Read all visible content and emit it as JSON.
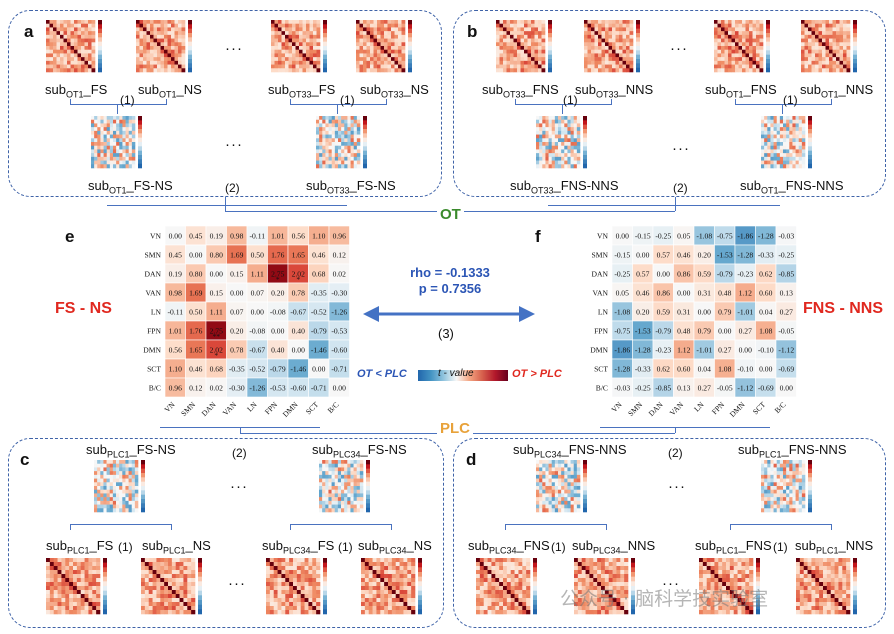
{
  "panels": {
    "a": {
      "letter": "a",
      "left_l1": "sub",
      "left_s1": "OT1",
      "left_t1": "_FS",
      "left_l2": "sub",
      "left_s2": "OT1",
      "left_t2": "_NS",
      "right_l1": "sub",
      "right_s1": "OT33",
      "right_t1": "_FS",
      "right_l2": "sub",
      "right_s2": "OT33",
      "right_t2": "_NS",
      "step1a": "(1)",
      "step1b": "(1)",
      "bot_left_pre": "sub",
      "bot_left_sub": "OT1",
      "bot_left_t": "_FS-NS",
      "bot_right_pre": "sub",
      "bot_right_sub": "OT33",
      "bot_right_t": "_FS-NS",
      "step2": "(2)",
      "dots": "···"
    },
    "b": {
      "letter": "b",
      "left_l1": "sub",
      "left_s1": "OT33",
      "left_t1": "_FNS",
      "left_l2": "sub",
      "left_s2": "OT33",
      "left_t2": "_NNS",
      "right_l1": "sub",
      "right_s1": "OT1",
      "right_t1": "_FNS",
      "right_l2": "sub",
      "right_s2": "OT1",
      "right_t2": "_NNS",
      "step1a": "(1)",
      "step1b": "(1)",
      "bot_left_pre": "sub",
      "bot_left_sub": "OT33",
      "bot_left_t": "_FNS-NNS",
      "bot_right_pre": "sub",
      "bot_right_sub": "OT1",
      "bot_right_t": "_FNS-NNS",
      "step2": "(2)",
      "dots": "···"
    },
    "c": {
      "letter": "c",
      "top_left_pre": "sub",
      "top_left_sub": "PLC1",
      "top_left_t": "_FS-NS",
      "top_right_pre": "sub",
      "top_right_sub": "PLC34",
      "top_right_t": "_FS-NS",
      "step2": "(2)",
      "bl1_pre": "sub",
      "bl1_sub": "PLC1",
      "bl1_t": "_FS",
      "bl2_pre": "sub",
      "bl2_sub": "PLC1",
      "bl2_t": "_NS",
      "br1_pre": "sub",
      "br1_sub": "PLC34",
      "br1_t": "_FS",
      "br2_pre": "sub",
      "br2_sub": "PLC34",
      "br2_t": "_NS",
      "step1a": "(1)",
      "step1b": "(1)",
      "dots": "···"
    },
    "d": {
      "letter": "d",
      "top_left_pre": "sub",
      "top_left_sub": "PLC34",
      "top_left_t": "_FNS-NNS",
      "top_right_pre": "sub",
      "top_right_sub": "PLC1",
      "top_right_t": "_FNS-NNS",
      "step2": "(2)",
      "bl1_pre": "sub",
      "bl1_sub": "PLC34",
      "bl1_t": "_FNS",
      "bl2_pre": "sub",
      "bl2_sub": "PLC34",
      "bl2_t": "_NNS",
      "br1_pre": "sub",
      "br1_sub": "PLC1",
      "br1_t": "_FNS",
      "br2_pre": "sub",
      "br2_sub": "PLC1",
      "br2_t": "_NNS",
      "step1a": "(1)",
      "step1b": "(1)",
      "dots": "···"
    }
  },
  "middle": {
    "ot_label": "OT",
    "plc_label": "PLC",
    "fs_ns": "FS - NS",
    "fns_nns": "FNS - NNS",
    "rho": "rho = -0.1333",
    "p": "p = 0.7356",
    "step3": "(3)",
    "legend_left": "OT < PLC",
    "legend_mid": "t - value",
    "legend_right": "OT > PLC",
    "label_e": "e",
    "label_f": "f"
  },
  "watermark": "公众号 · 脑科学技实验室",
  "colors": {
    "red": "#e0281f",
    "blue": "#2b55b5",
    "green": "#3a8a2c",
    "orange": "#e8a23a",
    "panel_border": "#3f63a8"
  },
  "chart_data": [
    {
      "type": "heatmap",
      "title": "FS - NS",
      "labels": [
        "VN",
        "SMN",
        "DAN",
        "VAN",
        "LN",
        "FPN",
        "DMN",
        "SCT",
        "B/C"
      ],
      "values": [
        [
          0.0,
          0.45,
          0.19,
          0.98,
          -0.11,
          1.01,
          0.56,
          1.1,
          0.96
        ],
        [
          0.45,
          0.0,
          0.8,
          1.69,
          0.5,
          1.76,
          1.65,
          0.46,
          0.12
        ],
        [
          0.19,
          0.8,
          0.0,
          0.15,
          1.11,
          2.75,
          2.02,
          0.68,
          0.02
        ],
        [
          0.98,
          1.69,
          0.15,
          0.0,
          0.07,
          0.2,
          0.78,
          -0.35,
          -0.3
        ],
        [
          -0.11,
          0.5,
          1.11,
          0.07,
          0.0,
          -0.08,
          -0.67,
          -0.52,
          -1.26
        ],
        [
          1.01,
          1.76,
          2.75,
          0.2,
          -0.08,
          0.0,
          0.4,
          -0.79,
          -0.53
        ],
        [
          0.56,
          1.65,
          2.02,
          0.78,
          -0.67,
          0.4,
          0.0,
          -1.46,
          -0.6
        ],
        [
          1.1,
          0.46,
          0.68,
          -0.35,
          -0.52,
          -0.79,
          -1.46,
          0.0,
          -0.71
        ],
        [
          0.96,
          0.12,
          0.02,
          -0.3,
          -1.26,
          -0.53,
          -0.6,
          -0.71,
          0.0
        ]
      ],
      "marks": [
        {
          "row": 2,
          "col": 5,
          "text": "*"
        },
        {
          "row": 2,
          "col": 6,
          "text": "*"
        },
        {
          "row": 5,
          "col": 2,
          "text": "**"
        },
        {
          "row": 6,
          "col": 2,
          "text": "*"
        }
      ],
      "vlim": [
        -3,
        3
      ]
    },
    {
      "type": "heatmap",
      "title": "FNS - NNS",
      "labels": [
        "VN",
        "SMN",
        "DAN",
        "VAN",
        "LN",
        "FPN",
        "DMN",
        "SCT",
        "B/C"
      ],
      "values": [
        [
          0.0,
          -0.15,
          -0.25,
          0.05,
          -1.08,
          -0.75,
          -1.86,
          -1.28,
          -0.03
        ],
        [
          -0.15,
          0.0,
          0.57,
          0.46,
          0.2,
          -1.53,
          -1.28,
          -0.33,
          -0.25
        ],
        [
          -0.25,
          0.57,
          0.0,
          0.86,
          0.59,
          -0.79,
          -0.23,
          0.62,
          -0.85
        ],
        [
          0.05,
          0.46,
          0.86,
          0.0,
          0.31,
          0.48,
          1.12,
          0.6,
          0.13
        ],
        [
          -1.08,
          0.2,
          0.59,
          0.31,
          0.0,
          0.79,
          -1.01,
          0.04,
          0.27
        ],
        [
          -0.75,
          -1.53,
          -0.79,
          0.48,
          0.79,
          0.0,
          0.27,
          1.08,
          -0.05
        ],
        [
          -1.86,
          -1.28,
          -0.23,
          1.12,
          -1.01,
          0.27,
          0.0,
          -0.1,
          -1.12
        ],
        [
          -1.28,
          -0.33,
          0.62,
          0.6,
          0.04,
          1.08,
          -0.1,
          0.0,
          -0.69
        ],
        [
          -0.03,
          -0.25,
          -0.85,
          0.13,
          0.27,
          -0.05,
          -1.12,
          -0.69,
          0.0
        ]
      ],
      "vlim": [
        -3,
        3
      ]
    }
  ]
}
